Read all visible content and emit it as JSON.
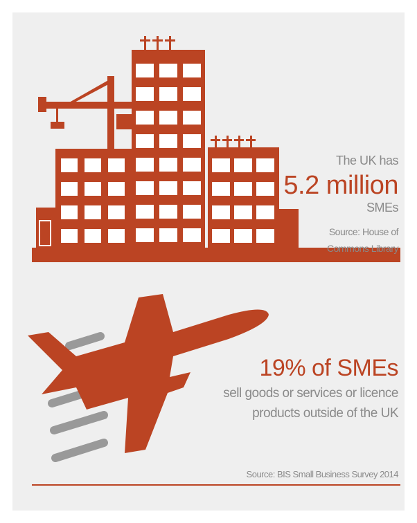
{
  "buildings": {
    "intro": "The UK has",
    "figure": "5.2 million",
    "subject": "SMEs",
    "source": [
      "Source: House of",
      "Commons Library"
    ]
  },
  "export": {
    "figure": "19% of SMEs",
    "description": [
      "sell goods or services or licence",
      "products outside of the UK"
    ],
    "source": "Source: BIS Small Business Survey 2014"
  }
}
